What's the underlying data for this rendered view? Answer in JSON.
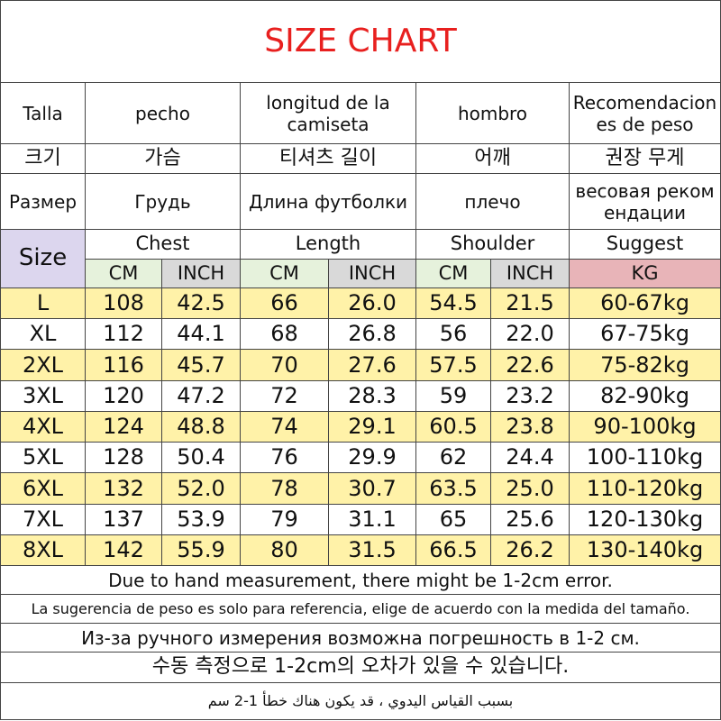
{
  "title": "SIZE CHART",
  "header_rows": [
    [
      "Talla",
      "pecho",
      "longitud de la camiseta",
      "hombro",
      "Recomendaciones de peso"
    ],
    [
      "크기",
      "가슴",
      "티셔츠 길이",
      "어깨",
      "권장 무게"
    ],
    [
      "Размер",
      "Грудь",
      "Длина футболки",
      "плечо",
      "весовая рекомендации"
    ]
  ],
  "size_label": "Size",
  "groups": [
    "Chest",
    "Length",
    "Shoulder",
    "Suggest"
  ],
  "units": [
    "CM",
    "INCH",
    "CM",
    "INCH",
    "CM",
    "INCH",
    "KG"
  ],
  "rows": [
    [
      "L",
      "108",
      "42.5",
      "66",
      "26.0",
      "54.5",
      "21.5",
      "60-67kg"
    ],
    [
      "XL",
      "112",
      "44.1",
      "68",
      "26.8",
      "56",
      "22.0",
      "67-75kg"
    ],
    [
      "2XL",
      "116",
      "45.7",
      "70",
      "27.6",
      "57.5",
      "22.6",
      "75-82kg"
    ],
    [
      "3XL",
      "120",
      "47.2",
      "72",
      "28.3",
      "59",
      "23.2",
      "82-90kg"
    ],
    [
      "4XL",
      "124",
      "48.8",
      "74",
      "29.1",
      "60.5",
      "23.8",
      "90-100kg"
    ],
    [
      "5XL",
      "128",
      "50.4",
      "76",
      "29.9",
      "62",
      "24.4",
      "100-110kg"
    ],
    [
      "6XL",
      "132",
      "52.0",
      "78",
      "30.7",
      "63.5",
      "25.0",
      "110-120kg"
    ],
    [
      "7XL",
      "137",
      "53.9",
      "79",
      "31.1",
      "65",
      "25.6",
      "120-130kg"
    ],
    [
      "8XL",
      "142",
      "55.9",
      "80",
      "31.5",
      "66.5",
      "26.2",
      "130-140kg"
    ]
  ],
  "notes": [
    "Due to hand measurement, there might be 1-2cm error.",
    "La sugerencia de peso es solo para referencia, elige de acuerdo con la medida del tamaño.",
    "Из-за ручного измерения возможна погрешность в 1-2 см.",
    "수동 측정으로 1-2cm의 오차가 있을 수 있습니다.",
    "بسبب القياس اليدوي ، قد يكون هناك خطأ 1-2 سم"
  ]
}
